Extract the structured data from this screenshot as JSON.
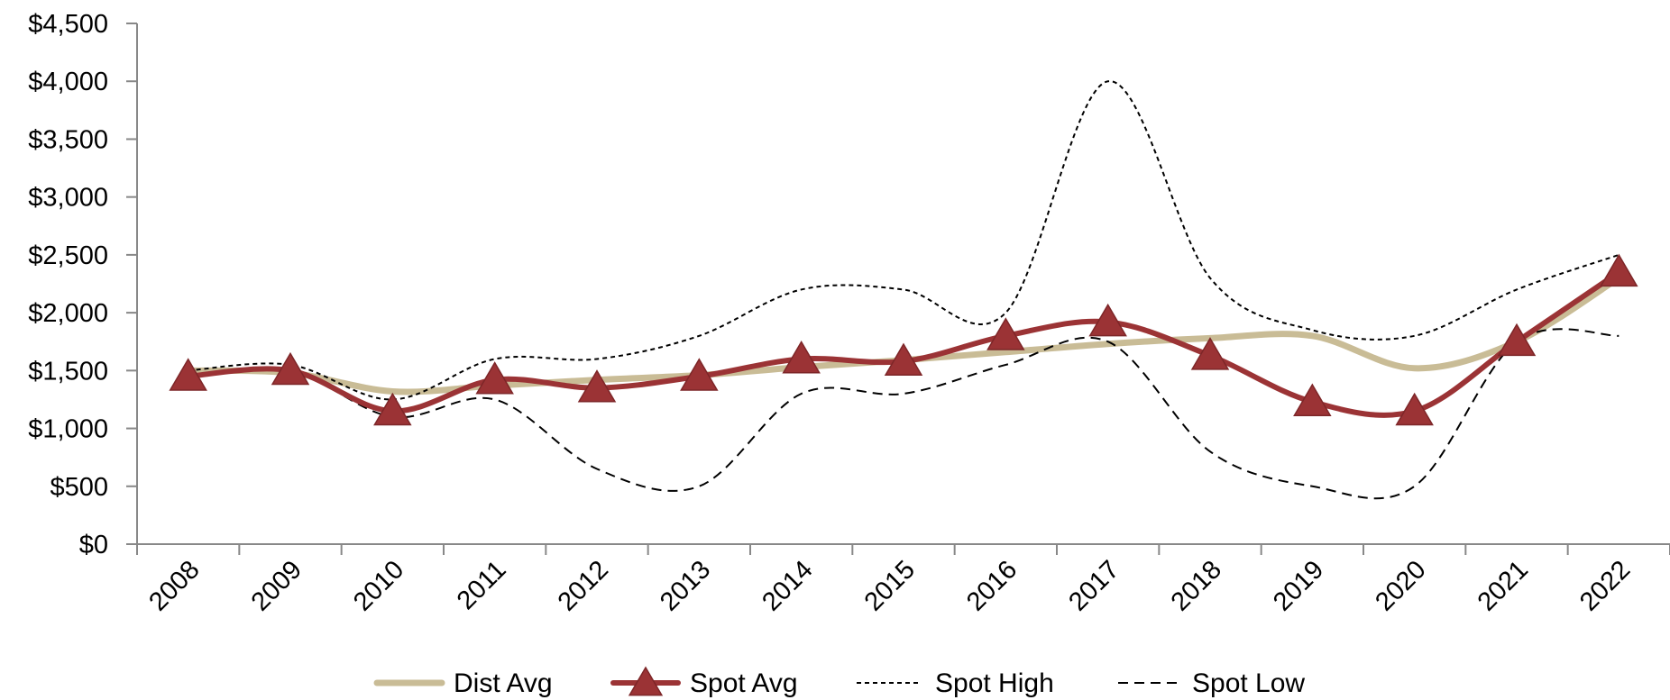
{
  "chart_data": {
    "type": "line",
    "title": "",
    "xlabel": "",
    "ylabel": "",
    "categories": [
      "2008",
      "2009",
      "2010",
      "2011",
      "2012",
      "2013",
      "2014",
      "2015",
      "2016",
      "2017",
      "2018",
      "2019",
      "2020",
      "2021",
      "2022"
    ],
    "ylim": [
      0,
      4500
    ],
    "y_ticks": [
      0,
      500,
      1000,
      1500,
      2000,
      2500,
      3000,
      3500,
      4000,
      4500
    ],
    "y_tick_labels": [
      "$0",
      "$500",
      "$1,000",
      "$1,500",
      "$2,000",
      "$2,500",
      "$3,000",
      "$3,500",
      "$4,000",
      "$4,500"
    ],
    "grid": false,
    "legend_position": "bottom",
    "series": [
      {
        "name": "Dist Avg",
        "style": "thick-line",
        "color": "#c9bc96",
        "values": [
          1500,
          1480,
          1320,
          1370,
          1420,
          1460,
          1530,
          1590,
          1660,
          1730,
          1780,
          1800,
          1520,
          1750,
          2300
        ]
      },
      {
        "name": "Spot Avg",
        "style": "line-triangle-markers",
        "color": "#9b3335",
        "values": [
          1450,
          1500,
          1150,
          1420,
          1350,
          1450,
          1600,
          1580,
          1800,
          1920,
          1630,
          1230,
          1150,
          1750,
          2350
        ]
      },
      {
        "name": "Spot High",
        "style": "short-dash",
        "color": "#000000",
        "values": [
          1500,
          1550,
          1250,
          1600,
          1600,
          1800,
          2200,
          2200,
          2000,
          4000,
          2300,
          1850,
          1800,
          2200,
          2500
        ]
      },
      {
        "name": "Spot Low",
        "style": "long-dash",
        "color": "#000000",
        "values": [
          1450,
          1500,
          1100,
          1250,
          650,
          500,
          1300,
          1300,
          1550,
          1750,
          800,
          500,
          500,
          1750,
          1800
        ]
      }
    ]
  }
}
